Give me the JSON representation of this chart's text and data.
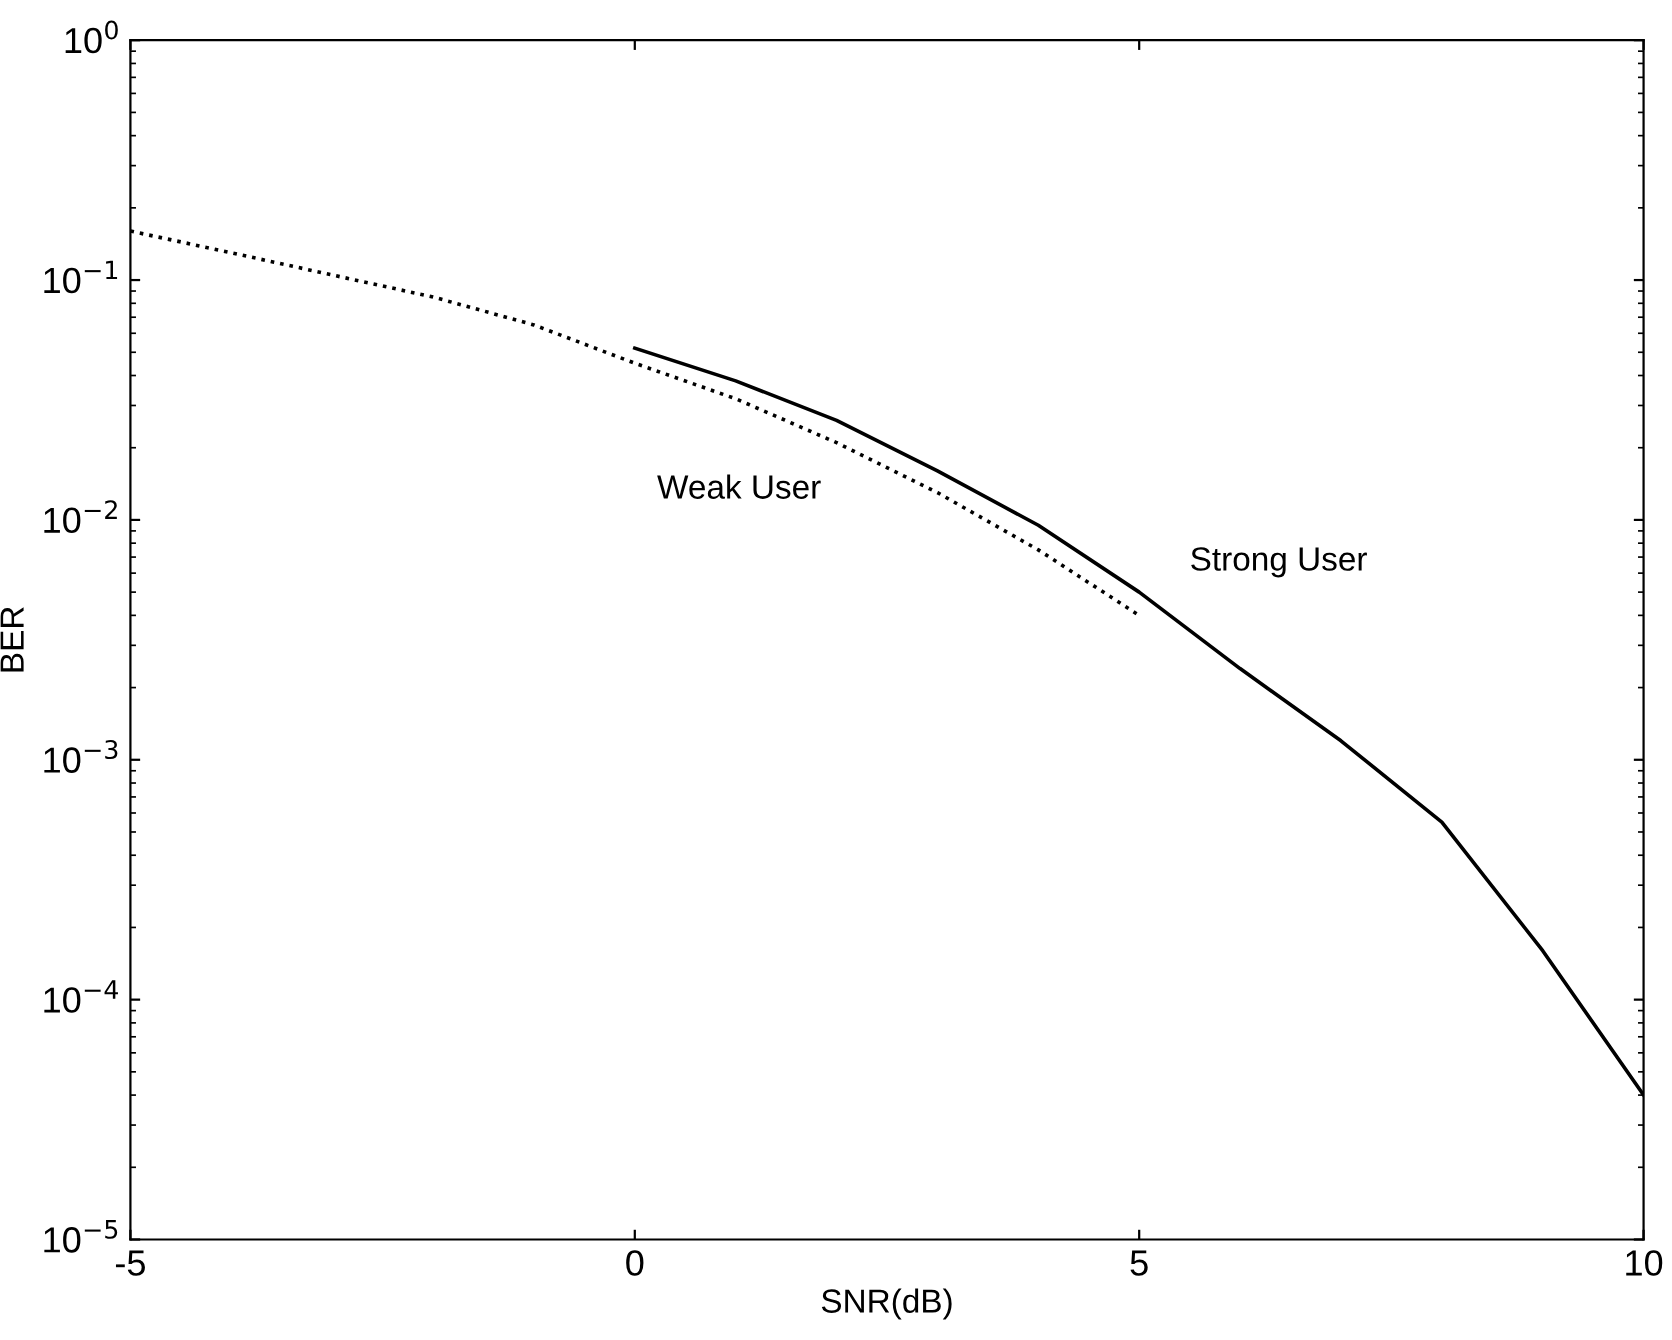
{
  "chart_data": {
    "type": "line",
    "xlabel": "SNR(dB)",
    "ylabel": "BER",
    "log": "y",
    "grid": false,
    "xlim": [
      -5,
      10
    ],
    "xticks": [
      -5,
      0,
      5,
      10
    ],
    "ylim": [
      1e-05,
      1
    ],
    "yticks": [
      {
        "value": 1e-05,
        "label": "10$^{−5}$"
      },
      {
        "value": 0.0001,
        "label": "10$^{−4}$"
      },
      {
        "value": 0.001,
        "label": "10$^{−3}$"
      },
      {
        "value": 0.01,
        "label": "10$^{−2}$"
      },
      {
        "value": 0.1,
        "label": "10$^{−1}$"
      },
      {
        "value": 1,
        "label": "10$^{0}$"
      }
    ],
    "series": [
      {
        "name": "Weak User",
        "color": "#000000",
        "line_style": "dotted",
        "x": [
          -5,
          -4,
          -3,
          -2,
          -1,
          0,
          1,
          2,
          3,
          4,
          5
        ],
        "values": [
          0.16,
          0.13,
          0.105,
          0.085,
          0.065,
          0.045,
          0.032,
          0.021,
          0.013,
          0.0075,
          0.004
        ]
      },
      {
        "name": "Strong User",
        "color": "#000000",
        "line_style": "solid",
        "x": [
          0,
          1,
          2,
          3,
          4,
          5,
          6,
          7,
          8,
          9,
          10
        ],
        "values": [
          0.052,
          0.038,
          0.026,
          0.016,
          0.0095,
          0.005,
          0.0024,
          0.0012,
          0.00055,
          0.00016,
          4e-05
        ]
      }
    ]
  }
}
